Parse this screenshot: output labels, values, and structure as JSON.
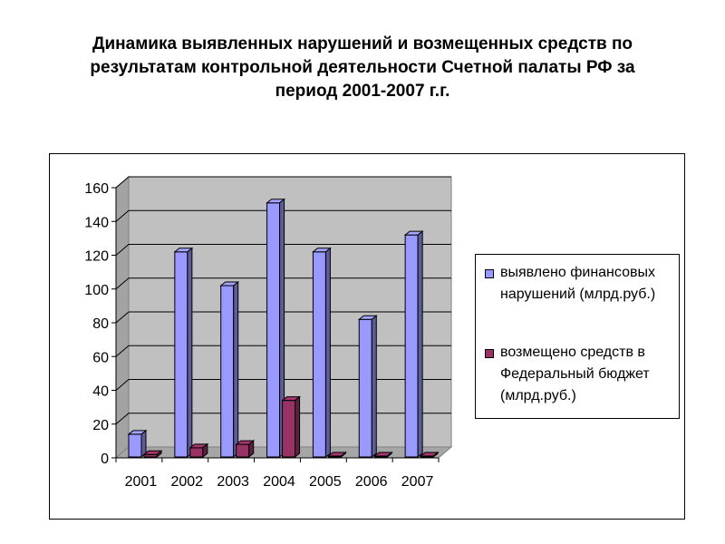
{
  "title": {
    "line1": "Динамика выявленных нарушений и возмещенных средств по",
    "line2": "результатам контрольной деятельности Счетной палаты РФ за",
    "line3": "период 2001-2007 г.г."
  },
  "legend": {
    "items": [
      {
        "line1": "выявлено финансовых",
        "line2": "нарушений (млрд.руб.)",
        "line3": ""
      },
      {
        "line1": "возмещено средств в",
        "line2": "Федеральный бюджет",
        "line3": "(млрд.руб.)"
      }
    ]
  },
  "colors": {
    "series1": "#9999ff",
    "series2": "#993366",
    "wall": "#c0c0c0",
    "floor": "#a6a6a6"
  },
  "chart_data": {
    "type": "bar",
    "categories": [
      "2001",
      "2002",
      "2003",
      "2004",
      "2005",
      "2006",
      "2007"
    ],
    "series": [
      {
        "name": "выявлено финансовых нарушений (млрд.руб.)",
        "values": [
          14,
          122,
          102,
          151,
          122,
          82,
          132
        ]
      },
      {
        "name": "возмещено средств в Федеральный бюджет (млрд.руб.)",
        "values": [
          2,
          6,
          8,
          34,
          0.5,
          0.5,
          1
        ]
      }
    ],
    "yticks": [
      0,
      20,
      40,
      60,
      80,
      100,
      120,
      140,
      160
    ],
    "ylim": [
      0,
      160
    ],
    "grid": true,
    "legend_position": "right",
    "style": "3d-column"
  }
}
